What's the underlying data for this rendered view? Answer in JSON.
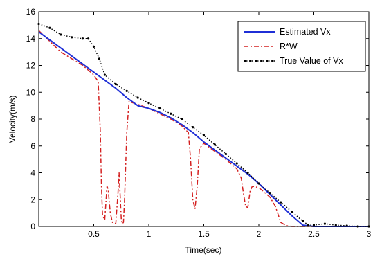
{
  "chart_data": {
    "type": "line",
    "title": "",
    "xlabel": "Time(sec)",
    "ylabel": "Velocity(m/s)",
    "xlim": [
      0,
      3
    ],
    "ylim": [
      0,
      16
    ],
    "xticks": [
      0.5,
      1,
      1.5,
      2,
      2.5,
      3
    ],
    "xtick_labels": [
      "0.5",
      "1",
      "1.5",
      "2",
      "2.5",
      "3"
    ],
    "yticks": [
      0,
      2,
      4,
      6,
      8,
      10,
      12,
      14,
      16
    ],
    "ytick_labels": [
      "0",
      "2",
      "4",
      "6",
      "8",
      "10",
      "12",
      "14",
      "16"
    ],
    "grid": false,
    "legend_position": "top-right",
    "series": [
      {
        "name": "Estimated Vx",
        "color": "#1f2fd6",
        "style": "solid",
        "x": [
          0,
          0.1,
          0.2,
          0.3,
          0.4,
          0.5,
          0.6,
          0.7,
          0.8,
          0.9,
          1.0,
          1.1,
          1.2,
          1.3,
          1.4,
          1.5,
          1.6,
          1.7,
          1.8,
          1.9,
          2.0,
          2.1,
          2.2,
          2.3,
          2.4,
          2.5,
          2.6,
          2.7,
          2.8,
          2.9,
          3.0
        ],
        "y": [
          14.5,
          13.9,
          13.3,
          12.7,
          12.1,
          11.5,
          10.9,
          10.3,
          9.6,
          9.0,
          8.8,
          8.5,
          8.1,
          7.6,
          7.0,
          6.3,
          5.7,
          5.1,
          4.5,
          3.9,
          3.2,
          2.4,
          1.6,
          0.8,
          0.1,
          0,
          0,
          0,
          0,
          0,
          0
        ]
      },
      {
        "name": "R*W",
        "color": "#d42020",
        "style": "dashdot",
        "x": [
          0,
          0.1,
          0.2,
          0.3,
          0.4,
          0.5,
          0.54,
          0.56,
          0.57,
          0.58,
          0.6,
          0.62,
          0.63,
          0.65,
          0.67,
          0.7,
          0.72,
          0.73,
          0.75,
          0.76,
          0.77,
          0.78,
          0.8,
          0.82,
          0.9,
          1.0,
          1.1,
          1.2,
          1.3,
          1.36,
          1.38,
          1.4,
          1.42,
          1.44,
          1.46,
          1.5,
          1.6,
          1.7,
          1.8,
          1.84,
          1.86,
          1.88,
          1.9,
          1.92,
          1.94,
          2.0,
          2.1,
          2.15,
          2.2,
          2.25,
          2.3,
          2.4,
          2.5,
          2.6,
          2.7,
          2.8,
          2.9,
          3.0
        ],
        "y": [
          14.6,
          13.8,
          13.0,
          12.5,
          12.0,
          11.3,
          10.8,
          7.0,
          3.0,
          0.8,
          0.5,
          3.0,
          2.8,
          1.0,
          0.3,
          0.2,
          2.5,
          4.0,
          0.5,
          0.2,
          0.3,
          2.0,
          7.0,
          9.3,
          9.1,
          8.8,
          8.4,
          8.0,
          7.5,
          7.0,
          5.0,
          2.0,
          1.3,
          3.0,
          5.8,
          6.2,
          5.6,
          5.0,
          4.3,
          3.6,
          2.5,
          1.5,
          1.4,
          2.6,
          3.0,
          2.9,
          2.2,
          1.5,
          0.3,
          0.05,
          0,
          0,
          0,
          0,
          0,
          0,
          0,
          0
        ]
      },
      {
        "name": "True Value of Vx",
        "color": "#000000",
        "style": "dotted",
        "x": [
          0,
          0.1,
          0.2,
          0.3,
          0.4,
          0.45,
          0.5,
          0.55,
          0.6,
          0.7,
          0.8,
          0.9,
          1.0,
          1.1,
          1.2,
          1.3,
          1.4,
          1.5,
          1.6,
          1.7,
          1.8,
          1.9,
          2.0,
          2.1,
          2.2,
          2.3,
          2.4,
          2.45,
          2.5,
          2.6,
          2.7,
          2.8,
          2.9,
          3.0
        ],
        "y": [
          15.1,
          14.8,
          14.3,
          14.1,
          14.0,
          14.0,
          13.4,
          12.5,
          11.3,
          10.6,
          10.1,
          9.6,
          9.2,
          8.8,
          8.4,
          8.0,
          7.4,
          6.8,
          6.1,
          5.4,
          4.7,
          4.0,
          3.2,
          2.5,
          1.8,
          1.1,
          0.4,
          0.1,
          0.1,
          0.2,
          0.1,
          0.05,
          0,
          0
        ]
      }
    ]
  }
}
